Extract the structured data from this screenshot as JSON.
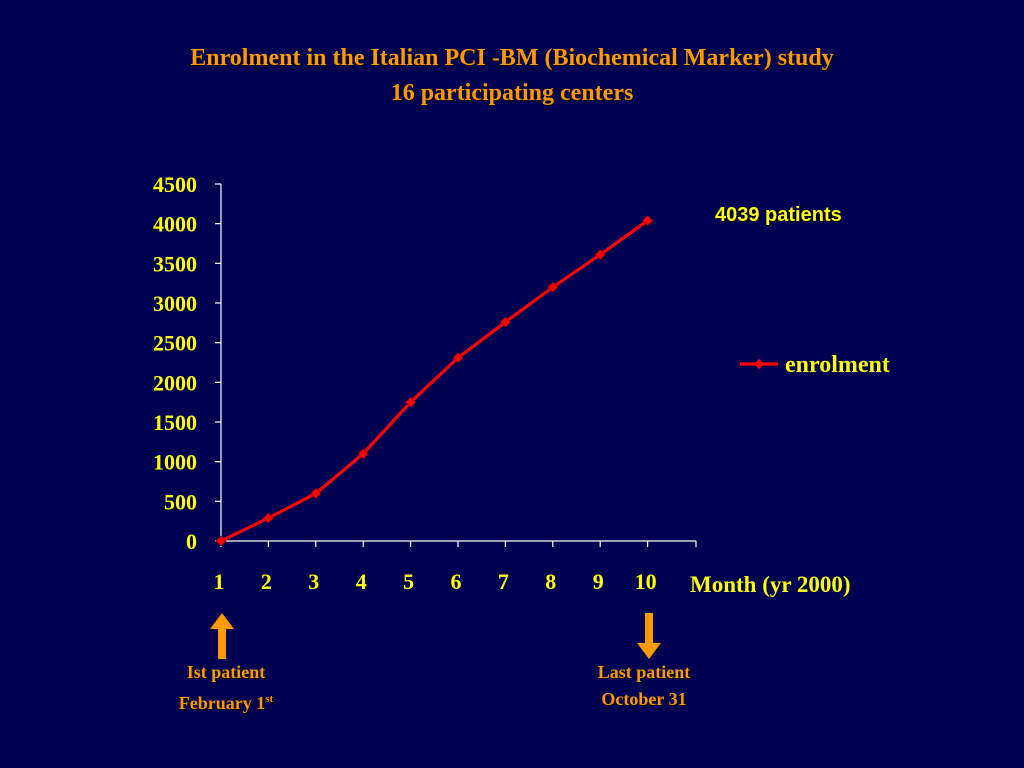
{
  "slide": {
    "title_line_1": "Enrolment in the Italian PCI -BM (Biochemical Marker) study",
    "title_line_2": "16 participating centers",
    "callout": "4039 patients",
    "first_patient": {
      "label": "Ist patient",
      "date_prefix": "February 1",
      "date_suffix": "st"
    },
    "last_patient": {
      "label": "Last patient",
      "date": "October 31"
    }
  },
  "colors": {
    "background": "#000050",
    "title": "#FF9900",
    "text": "#FFFF00",
    "series": "#FF0000",
    "axis": "#FFFFFF",
    "arrow": "#FF9900"
  },
  "chart_data": {
    "type": "line",
    "xlabel": "Month (yr 2000)",
    "ylabel": "",
    "x": [
      1,
      2,
      3,
      4,
      5,
      6,
      7,
      8,
      9,
      10
    ],
    "ylim": [
      0,
      4500
    ],
    "yticks": [
      0,
      500,
      1000,
      1500,
      2000,
      2500,
      3000,
      3500,
      4000,
      4500
    ],
    "legend_position": "right",
    "grid": false,
    "series": [
      {
        "name": "enrolment",
        "values": [
          0,
          290,
          600,
          1100,
          1750,
          2310,
          2760,
          3200,
          3610,
          4039
        ]
      }
    ]
  }
}
